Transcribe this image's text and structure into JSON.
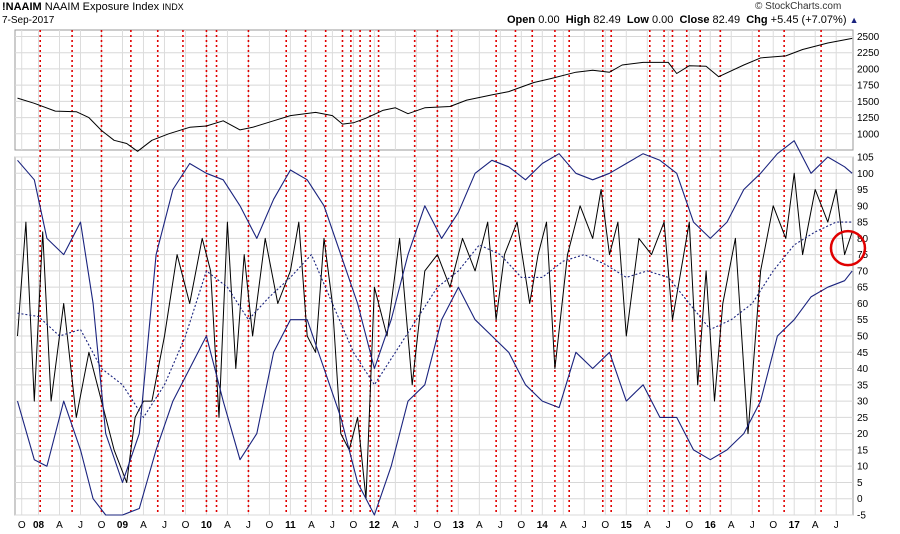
{
  "header": {
    "symbol": "!NAAIM",
    "name": "NAAIM Exposure Index",
    "exchange": "INDX",
    "date": "7-Sep-2017",
    "open_label": "Open",
    "open_value": "0.00",
    "high_label": "High",
    "high_value": "82.49",
    "low_label": "Low",
    "low_value": "0.00",
    "close_label": "Close",
    "close_value": "82.49",
    "chg_label": "Chg",
    "chg_value": "+5.45 (+7.07%)",
    "watermark": "© StockCharts.com",
    "up_arrow": "▲"
  },
  "chart_data": [
    {
      "type": "line",
      "panel": "upper",
      "title": "",
      "y_tick_labels": [
        "2500",
        "2250",
        "2000",
        "1750",
        "1500",
        "1250",
        "1000"
      ],
      "ylim": [
        750,
        2600
      ],
      "grid": true,
      "series": [
        {
          "color": "#000000",
          "x": [
            2007.75,
            2007.95,
            2008.2,
            2008.45,
            2008.6,
            2008.75,
            2008.9,
            2009.05,
            2009.18,
            2009.35,
            2009.55,
            2009.8,
            2010.0,
            2010.2,
            2010.4,
            2010.55,
            2010.8,
            2011.0,
            2011.3,
            2011.5,
            2011.62,
            2011.75,
            2011.9,
            2012.1,
            2012.25,
            2012.4,
            2012.6,
            2012.9,
            2013.1,
            2013.4,
            2013.6,
            2013.9,
            2014.1,
            2014.4,
            2014.6,
            2014.8,
            2014.95,
            2015.2,
            2015.5,
            2015.6,
            2015.75,
            2015.95,
            2016.1,
            2016.4,
            2016.6,
            2016.9,
            2017.1,
            2017.4,
            2017.69
          ],
          "y": [
            1550,
            1470,
            1350,
            1340,
            1250,
            1050,
            900,
            850,
            730,
            900,
            1000,
            1100,
            1120,
            1200,
            1060,
            1100,
            1200,
            1280,
            1330,
            1280,
            1150,
            1170,
            1240,
            1360,
            1400,
            1310,
            1400,
            1420,
            1520,
            1600,
            1650,
            1790,
            1850,
            1950,
            1980,
            1950,
            2060,
            2100,
            2100,
            1930,
            2050,
            2040,
            1880,
            2060,
            2170,
            2200,
            2300,
            2400,
            2470
          ]
        }
      ]
    },
    {
      "type": "line",
      "panel": "lower",
      "title": "",
      "y_tick_labels": [
        "105",
        "100",
        "95",
        "90",
        "85",
        "80",
        "75",
        "70",
        "65",
        "60",
        "55",
        "50",
        "45",
        "40",
        "35",
        "30",
        "25",
        "20",
        "15",
        "10",
        "5",
        "0",
        "-5"
      ],
      "ylim": [
        -5,
        105
      ],
      "grid": true,
      "series": [
        {
          "color": "#000000",
          "x": [
            2007.75,
            2007.85,
            2007.95,
            2008.05,
            2008.15,
            2008.3,
            2008.45,
            2008.6,
            2008.75,
            2008.9,
            2009.05,
            2009.15,
            2009.25,
            2009.35,
            2009.5,
            2009.65,
            2009.8,
            2009.95,
            2010.05,
            2010.15,
            2010.25,
            2010.35,
            2010.45,
            2010.55,
            2010.7,
            2010.85,
            2011.0,
            2011.1,
            2011.2,
            2011.3,
            2011.4,
            2011.5,
            2011.6,
            2011.7,
            2011.8,
            2011.9,
            2012.0,
            2012.15,
            2012.3,
            2012.45,
            2012.6,
            2012.75,
            2012.9,
            2013.05,
            2013.2,
            2013.35,
            2013.45,
            2013.55,
            2013.7,
            2013.85,
            2013.95,
            2014.05,
            2014.15,
            2014.3,
            2014.45,
            2014.6,
            2014.7,
            2014.8,
            2014.9,
            2015.0,
            2015.15,
            2015.3,
            2015.45,
            2015.55,
            2015.65,
            2015.75,
            2015.85,
            2015.95,
            2016.05,
            2016.15,
            2016.3,
            2016.45,
            2016.6,
            2016.75,
            2016.9,
            2017.0,
            2017.1,
            2017.25,
            2017.4,
            2017.5,
            2017.6,
            2017.69
          ],
          "y": [
            50,
            85,
            30,
            82,
            30,
            60,
            25,
            45,
            30,
            15,
            5,
            25,
            30,
            30,
            50,
            75,
            60,
            80,
            70,
            25,
            85,
            40,
            75,
            50,
            80,
            60,
            70,
            85,
            50,
            45,
            80,
            60,
            20,
            15,
            25,
            0,
            65,
            50,
            80,
            35,
            70,
            75,
            65,
            80,
            70,
            85,
            55,
            75,
            85,
            60,
            75,
            85,
            40,
            75,
            90,
            80,
            95,
            75,
            85,
            50,
            80,
            75,
            85,
            55,
            70,
            85,
            35,
            70,
            30,
            60,
            80,
            20,
            70,
            90,
            80,
            100,
            75,
            95,
            85,
            95,
            75,
            82
          ]
        },
        {
          "color": "#1a237e",
          "x": [
            2007.75,
            2007.95,
            2008.1,
            2008.3,
            2008.5,
            2008.65,
            2008.8,
            2009.0,
            2009.2,
            2009.4,
            2009.6,
            2009.8,
            2010.0,
            2010.2,
            2010.4,
            2010.6,
            2010.8,
            2011.0,
            2011.2,
            2011.4,
            2011.6,
            2011.8,
            2012.0,
            2012.2,
            2012.4,
            2012.6,
            2012.8,
            2013.0,
            2013.2,
            2013.4,
            2013.6,
            2013.8,
            2014.0,
            2014.2,
            2014.4,
            2014.6,
            2014.8,
            2015.0,
            2015.2,
            2015.4,
            2015.6,
            2015.8,
            2016.0,
            2016.2,
            2016.4,
            2016.6,
            2016.8,
            2017.0,
            2017.2,
            2017.4,
            2017.6,
            2017.69
          ],
          "y": [
            104,
            98,
            80,
            75,
            85,
            60,
            20,
            5,
            20,
            75,
            95,
            103,
            100,
            98,
            90,
            80,
            92,
            101,
            98,
            90,
            75,
            60,
            40,
            55,
            75,
            90,
            80,
            88,
            100,
            104,
            102,
            98,
            103,
            106,
            100,
            98,
            100,
            103,
            106,
            104,
            100,
            85,
            80,
            85,
            95,
            100,
            106,
            110,
            100,
            105,
            102,
            100
          ]
        },
        {
          "color": "#1a237e",
          "x": [
            2007.75,
            2007.95,
            2008.1,
            2008.3,
            2008.5,
            2008.65,
            2008.8,
            2009.0,
            2009.2,
            2009.4,
            2009.6,
            2009.8,
            2010.0,
            2010.2,
            2010.4,
            2010.6,
            2010.8,
            2011.0,
            2011.2,
            2011.4,
            2011.6,
            2011.8,
            2012.0,
            2012.2,
            2012.4,
            2012.6,
            2012.8,
            2013.0,
            2013.2,
            2013.4,
            2013.6,
            2013.8,
            2014.0,
            2014.2,
            2014.4,
            2014.6,
            2014.8,
            2015.0,
            2015.2,
            2015.4,
            2015.6,
            2015.8,
            2016.0,
            2016.2,
            2016.4,
            2016.6,
            2016.8,
            2017.0,
            2017.2,
            2017.4,
            2017.6,
            2017.69
          ],
          "y": [
            30,
            12,
            10,
            30,
            15,
            0,
            -5,
            -5,
            -3,
            15,
            30,
            40,
            50,
            30,
            12,
            20,
            45,
            55,
            55,
            40,
            25,
            5,
            -5,
            10,
            30,
            35,
            55,
            65,
            55,
            50,
            45,
            35,
            30,
            28,
            45,
            40,
            45,
            30,
            35,
            25,
            25,
            15,
            12,
            15,
            20,
            30,
            50,
            55,
            62,
            65,
            67,
            70
          ]
        },
        {
          "color": "#1a237e",
          "dashed": true,
          "x": [
            2007.75,
            2008.0,
            2008.25,
            2008.5,
            2008.75,
            2009.0,
            2009.25,
            2009.5,
            2009.75,
            2010.0,
            2010.25,
            2010.5,
            2010.75,
            2011.0,
            2011.25,
            2011.5,
            2011.75,
            2012.0,
            2012.25,
            2012.5,
            2012.75,
            2013.0,
            2013.25,
            2013.5,
            2013.75,
            2014.0,
            2014.25,
            2014.5,
            2014.75,
            2015.0,
            2015.25,
            2015.5,
            2015.75,
            2016.0,
            2016.25,
            2016.5,
            2016.75,
            2017.0,
            2017.25,
            2017.5,
            2017.69
          ],
          "y": [
            57,
            56,
            50,
            52,
            40,
            35,
            25,
            35,
            50,
            70,
            65,
            55,
            62,
            68,
            75,
            60,
            45,
            35,
            45,
            55,
            65,
            70,
            78,
            75,
            68,
            68,
            73,
            75,
            72,
            68,
            70,
            68,
            60,
            52,
            55,
            60,
            70,
            78,
            82,
            85,
            85
          ]
        }
      ]
    }
  ],
  "x_axis": {
    "labels": [
      {
        "t": 2007.8,
        "label": "O",
        "year": false
      },
      {
        "t": 2008.0,
        "label": "08",
        "year": true
      },
      {
        "t": 2008.25,
        "label": "A",
        "year": false
      },
      {
        "t": 2008.5,
        "label": "J",
        "year": false
      },
      {
        "t": 2008.75,
        "label": "O",
        "year": false
      },
      {
        "t": 2009.0,
        "label": "09",
        "year": true
      },
      {
        "t": 2009.25,
        "label": "A",
        "year": false
      },
      {
        "t": 2009.5,
        "label": "J",
        "year": false
      },
      {
        "t": 2009.75,
        "label": "O",
        "year": false
      },
      {
        "t": 2010.0,
        "label": "10",
        "year": true
      },
      {
        "t": 2010.25,
        "label": "A",
        "year": false
      },
      {
        "t": 2010.5,
        "label": "J",
        "year": false
      },
      {
        "t": 2010.75,
        "label": "O",
        "year": false
      },
      {
        "t": 2011.0,
        "label": "11",
        "year": true
      },
      {
        "t": 2011.25,
        "label": "A",
        "year": false
      },
      {
        "t": 2011.5,
        "label": "J",
        "year": false
      },
      {
        "t": 2011.75,
        "label": "O",
        "year": false
      },
      {
        "t": 2012.0,
        "label": "12",
        "year": true
      },
      {
        "t": 2012.25,
        "label": "A",
        "year": false
      },
      {
        "t": 2012.5,
        "label": "J",
        "year": false
      },
      {
        "t": 2012.75,
        "label": "O",
        "year": false
      },
      {
        "t": 2013.0,
        "label": "13",
        "year": true
      },
      {
        "t": 2013.25,
        "label": "A",
        "year": false
      },
      {
        "t": 2013.5,
        "label": "J",
        "year": false
      },
      {
        "t": 2013.75,
        "label": "O",
        "year": false
      },
      {
        "t": 2014.0,
        "label": "14",
        "year": true
      },
      {
        "t": 2014.25,
        "label": "A",
        "year": false
      },
      {
        "t": 2014.5,
        "label": "J",
        "year": false
      },
      {
        "t": 2014.75,
        "label": "O",
        "year": false
      },
      {
        "t": 2015.0,
        "label": "15",
        "year": true
      },
      {
        "t": 2015.25,
        "label": "A",
        "year": false
      },
      {
        "t": 2015.5,
        "label": "J",
        "year": false
      },
      {
        "t": 2015.75,
        "label": "O",
        "year": false
      },
      {
        "t": 2016.0,
        "label": "16",
        "year": true
      },
      {
        "t": 2016.25,
        "label": "A",
        "year": false
      },
      {
        "t": 2016.5,
        "label": "J",
        "year": false
      },
      {
        "t": 2016.75,
        "label": "O",
        "year": false
      },
      {
        "t": 2017.0,
        "label": "17",
        "year": true
      },
      {
        "t": 2017.25,
        "label": "A",
        "year": false
      },
      {
        "t": 2017.5,
        "label": "J",
        "year": false
      }
    ],
    "tmin": 2007.72,
    "tmax": 2017.7
  },
  "signal_lines": {
    "color": "#e00000",
    "dates": [
      2008.02,
      2008.4,
      2008.75,
      2009.1,
      2009.42,
      2009.72,
      2010.0,
      2010.12,
      2010.5,
      2010.95,
      2011.18,
      2011.42,
      2011.62,
      2011.72,
      2011.83,
      2011.95,
      2012.05,
      2012.48,
      2012.75,
      2012.92,
      2013.45,
      2013.68,
      2013.88,
      2014.15,
      2014.32,
      2014.72,
      2014.82,
      2015.28,
      2015.45,
      2015.55,
      2015.72,
      2015.88,
      2016.12,
      2016.58,
      2016.88,
      2017.32
    ]
  },
  "annotation": {
    "type": "circle",
    "color": "#e00000",
    "x": 2017.64,
    "y": 77
  }
}
